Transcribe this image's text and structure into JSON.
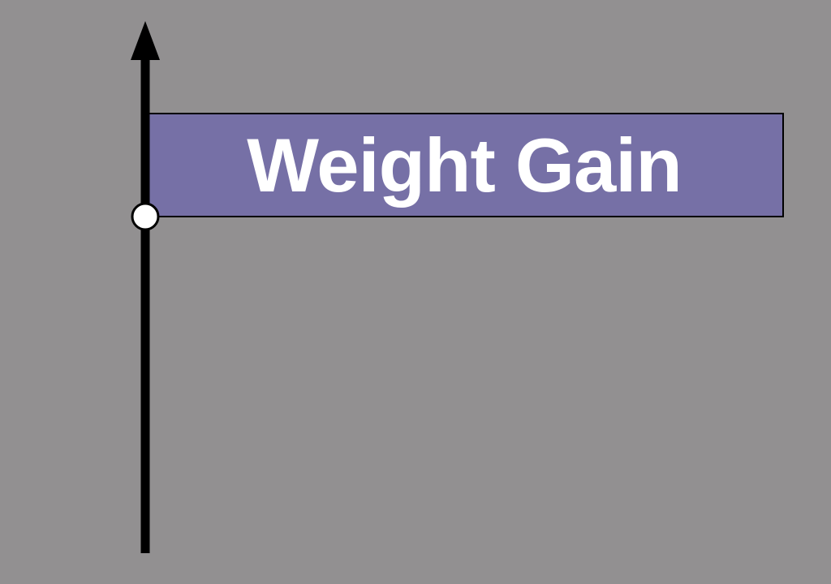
{
  "label": {
    "text": "Weight Gain"
  },
  "colors": {
    "background": "#929091",
    "box_fill": "#7670a6",
    "axis": "#000000",
    "marker_fill": "#ffffff",
    "text": "#ffffff"
  },
  "icons": {
    "axis_arrowhead": "arrow-up-icon",
    "marker": "circle-marker-icon"
  }
}
